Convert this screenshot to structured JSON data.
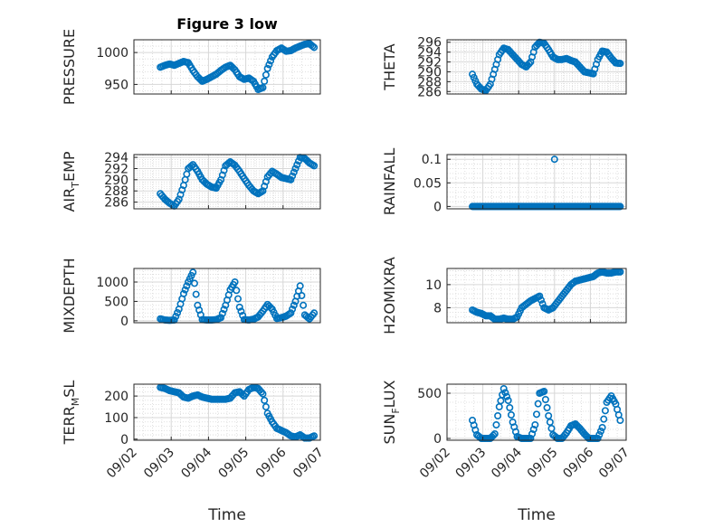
{
  "figure_title": "Figure 3 low",
  "colors": {
    "marker": "#0072bd",
    "axis": "#262626",
    "grid": "#d7d7d7",
    "frame": "#262626"
  },
  "x_ticks": [
    "09/02",
    "09/03",
    "09/04",
    "09/05",
    "09/06",
    "09/07"
  ],
  "x_label": "Time",
  "chart_data": [
    {
      "type": "scatter",
      "panel": "top-left",
      "title": "Figure 3 low",
      "ylabel": "PRESSURE",
      "ylim": [
        935,
        1020
      ],
      "yticks": [
        950,
        1000
      ],
      "grid": "on",
      "x": [
        "09/02 17:00",
        "09/02 20:00",
        "09/02 23:00",
        "09/03 02:00",
        "09/03 05:00",
        "09/03 08:00",
        "09/03 11:00",
        "09/03 14:00",
        "09/03 17:00",
        "09/03 20:00",
        "09/03 23:00",
        "09/04 02:00",
        "09/04 05:00",
        "09/04 08:00",
        "09/04 11:00",
        "09/04 14:00",
        "09/04 17:00",
        "09/04 20:00",
        "09/04 23:00",
        "09/05 02:00",
        "09/05 05:00",
        "09/05 08:00",
        "09/05 11:00",
        "09/05 14:00",
        "09/05 17:00",
        "09/05 20:00",
        "09/05 23:00",
        "09/06 02:00",
        "09/06 05:00",
        "09/06 08:00",
        "09/06 11:00",
        "09/06 14:00",
        "09/06 17:00",
        "09/06 20:00"
      ],
      "y": [
        977,
        980,
        982,
        980,
        983,
        986,
        984,
        972,
        962,
        955,
        958,
        962,
        966,
        972,
        977,
        980,
        973,
        962,
        958,
        960,
        955,
        942,
        945,
        975,
        993,
        1003,
        1007,
        1002,
        1003,
        1007,
        1010,
        1013,
        1014,
        1008
      ]
    },
    {
      "type": "scatter",
      "panel": "top-right",
      "ylabel": "THETA",
      "ylim": [
        285.5,
        296.5
      ],
      "yticks": [
        286,
        288,
        290,
        292,
        294,
        296
      ],
      "grid": "on",
      "x": [
        "09/02 17:00",
        "09/02 20:00",
        "09/02 23:00",
        "09/03 02:00",
        "09/03 05:00",
        "09/03 08:00",
        "09/03 11:00",
        "09/03 14:00",
        "09/03 17:00",
        "09/03 20:00",
        "09/03 23:00",
        "09/04 02:00",
        "09/04 05:00",
        "09/04 08:00",
        "09/04 11:00",
        "09/04 14:00",
        "09/04 17:00",
        "09/04 20:00",
        "09/04 23:00",
        "09/05 02:00",
        "09/05 05:00",
        "09/05 08:00",
        "09/05 11:00",
        "09/05 14:00",
        "09/05 17:00",
        "09/05 20:00",
        "09/05 23:00",
        "09/06 02:00",
        "09/06 05:00",
        "09/06 08:00",
        "09/06 11:00",
        "09/06 14:00",
        "09/06 17:00",
        "09/06 20:00"
      ],
      "y": [
        289.5,
        287.5,
        286.5,
        286.2,
        287.5,
        290.5,
        293.5,
        294.8,
        294.5,
        293.5,
        292.5,
        291.5,
        291,
        292,
        295,
        296,
        295.8,
        294.5,
        293,
        292.5,
        292.5,
        292.7,
        292.3,
        292,
        291,
        290,
        289.8,
        289.6,
        292.5,
        294.2,
        294,
        292.8,
        291.8,
        291.7
      ]
    },
    {
      "type": "scatter",
      "panel": "row2-left",
      "ylabel": "AIR_TEMP",
      "ylabel_sub": "T",
      "ylim": [
        284.8,
        294.5
      ],
      "yticks": [
        286,
        288,
        290,
        292,
        294
      ],
      "grid": "on",
      "x": [
        "09/02 17:00",
        "09/02 20:00",
        "09/02 23:00",
        "09/03 02:00",
        "09/03 05:00",
        "09/03 08:00",
        "09/03 11:00",
        "09/03 14:00",
        "09/03 17:00",
        "09/03 20:00",
        "09/03 23:00",
        "09/04 02:00",
        "09/04 05:00",
        "09/04 08:00",
        "09/04 11:00",
        "09/04 14:00",
        "09/04 17:00",
        "09/04 20:00",
        "09/04 23:00",
        "09/05 02:00",
        "09/05 05:00",
        "09/05 08:00",
        "09/05 11:00",
        "09/05 14:00",
        "09/05 17:00",
        "09/05 20:00",
        "09/05 23:00",
        "09/06 02:00",
        "09/06 05:00",
        "09/06 08:00",
        "09/06 11:00",
        "09/06 14:00",
        "09/06 17:00",
        "09/06 20:00"
      ],
      "y": [
        287.5,
        286.5,
        285.8,
        285.3,
        286.5,
        289,
        292,
        292.7,
        291.5,
        290,
        289.2,
        288.7,
        288.5,
        290,
        292.5,
        293.2,
        292.6,
        291.5,
        290.2,
        289,
        288,
        287.5,
        288,
        290.5,
        291.5,
        291,
        290.4,
        290.2,
        290,
        292,
        294,
        293.8,
        293,
        292.5
      ]
    },
    {
      "type": "scatter",
      "panel": "row2-right",
      "ylabel": "RAINFALL",
      "ylim": [
        -0.005,
        0.11
      ],
      "yticks": [
        0,
        0.05,
        0.1
      ],
      "yticklabels": [
        "0",
        "0.05",
        "0.1"
      ],
      "grid": "on",
      "x_range": [
        "09/02 17:00",
        "09/06 20:00"
      ],
      "baseline": 0,
      "x": [
        "09/05 00:00"
      ],
      "y": [
        0.1
      ]
    },
    {
      "type": "scatter",
      "panel": "row3-left",
      "ylabel": "MIXDEPTH",
      "ylim": [
        -50,
        1350
      ],
      "yticks": [
        0,
        500,
        1000
      ],
      "grid": "on",
      "x": [
        "09/02 17:00",
        "09/02 20:00",
        "09/02 23:00",
        "09/03 02:00",
        "09/03 05:00",
        "09/03 08:00",
        "09/03 11:00",
        "09/03 14:00",
        "09/03 17:00",
        "09/03 20:00",
        "09/03 23:00",
        "09/04 02:00",
        "09/04 05:00",
        "09/04 08:00",
        "09/04 11:00",
        "09/04 14:00",
        "09/04 17:00",
        "09/04 20:00",
        "09/04 23:00",
        "09/05 02:00",
        "09/05 05:00",
        "09/05 08:00",
        "09/05 11:00",
        "09/05 14:00",
        "09/05 17:00",
        "09/05 20:00",
        "09/05 23:00",
        "09/06 02:00",
        "09/06 05:00",
        "09/06 08:00",
        "09/06 11:00",
        "09/06 14:00",
        "09/06 17:00",
        "09/06 20:00"
      ],
      "y": [
        50,
        20,
        10,
        20,
        300,
        700,
        1000,
        1250,
        400,
        30,
        20,
        20,
        30,
        80,
        400,
        800,
        1000,
        350,
        30,
        20,
        40,
        100,
        250,
        420,
        300,
        60,
        80,
        120,
        200,
        500,
        900,
        150,
        50,
        200
      ]
    },
    {
      "type": "scatter",
      "panel": "row3-right",
      "ylabel": "H2OMIXRA",
      "ylim": [
        6.7,
        11.4
      ],
      "yticks": [
        8,
        10
      ],
      "grid": "on",
      "x": [
        "09/02 17:00",
        "09/02 20:00",
        "09/02 23:00",
        "09/03 02:00",
        "09/03 05:00",
        "09/03 08:00",
        "09/03 11:00",
        "09/03 14:00",
        "09/03 17:00",
        "09/03 20:00",
        "09/03 23:00",
        "09/04 02:00",
        "09/04 05:00",
        "09/04 08:00",
        "09/04 11:00",
        "09/04 14:00",
        "09/04 17:00",
        "09/04 20:00",
        "09/04 23:00",
        "09/05 02:00",
        "09/05 05:00",
        "09/05 08:00",
        "09/05 11:00",
        "09/05 14:00",
        "09/05 17:00",
        "09/05 20:00",
        "09/05 23:00",
        "09/06 02:00",
        "09/06 05:00",
        "09/06 08:00",
        "09/06 11:00",
        "09/06 14:00",
        "09/06 17:00",
        "09/06 20:00"
      ],
      "y": [
        7.8,
        7.6,
        7.5,
        7.3,
        7.3,
        7.0,
        7.0,
        7.1,
        7.0,
        7.0,
        7.2,
        8.0,
        8.3,
        8.6,
        8.8,
        9.0,
        8.0,
        7.8,
        8.0,
        8.5,
        9.0,
        9.5,
        10.0,
        10.3,
        10.4,
        10.5,
        10.6,
        10.7,
        11.0,
        11.1,
        11.0,
        11.0,
        11.1,
        11.1
      ]
    },
    {
      "type": "scatter",
      "panel": "bottom-left",
      "ylabel": "TERR_MSL",
      "ylabel_sub": "M",
      "ylim": [
        -5,
        255
      ],
      "yticks": [
        0,
        100,
        200
      ],
      "grid": "on",
      "x": [
        "09/02 17:00",
        "09/02 20:00",
        "09/02 23:00",
        "09/03 02:00",
        "09/03 05:00",
        "09/03 08:00",
        "09/03 11:00",
        "09/03 14:00",
        "09/03 17:00",
        "09/03 20:00",
        "09/03 23:00",
        "09/04 02:00",
        "09/04 05:00",
        "09/04 08:00",
        "09/04 11:00",
        "09/04 14:00",
        "09/04 17:00",
        "09/04 20:00",
        "09/04 23:00",
        "09/05 02:00",
        "09/05 05:00",
        "09/05 08:00",
        "09/05 11:00",
        "09/05 14:00",
        "09/05 17:00",
        "09/05 20:00",
        "09/05 23:00",
        "09/06 02:00",
        "09/06 05:00",
        "09/06 08:00",
        "09/06 11:00",
        "09/06 14:00",
        "09/06 17:00",
        "09/06 20:00"
      ],
      "y": [
        240,
        235,
        225,
        220,
        215,
        195,
        190,
        200,
        205,
        195,
        190,
        185,
        185,
        185,
        185,
        190,
        215,
        220,
        200,
        230,
        240,
        235,
        210,
        120,
        80,
        50,
        40,
        30,
        15,
        10,
        20,
        5,
        5,
        15
      ]
    },
    {
      "type": "scatter",
      "panel": "bottom-right",
      "ylabel": "SUN_FLUX",
      "ylabel_sub": "F",
      "ylim": [
        -20,
        600
      ],
      "yticks": [
        0,
        500
      ],
      "grid": "on",
      "x": [
        "09/02 17:00",
        "09/02 20:00",
        "09/02 23:00",
        "09/03 02:00",
        "09/03 05:00",
        "09/03 08:00",
        "09/03 11:00",
        "09/03 14:00",
        "09/03 17:00",
        "09/03 20:00",
        "09/03 23:00",
        "09/04 02:00",
        "09/04 05:00",
        "09/04 08:00",
        "09/04 11:00",
        "09/04 14:00",
        "09/04 17:00",
        "09/04 20:00",
        "09/04 23:00",
        "09/05 02:00",
        "09/05 05:00",
        "09/05 08:00",
        "09/05 11:00",
        "09/05 14:00",
        "09/05 17:00",
        "09/05 20:00",
        "09/05 23:00",
        "09/06 02:00",
        "09/06 05:00",
        "09/06 08:00",
        "09/06 11:00",
        "09/06 14:00",
        "09/06 17:00",
        "09/06 20:00"
      ],
      "y": [
        200,
        40,
        0,
        0,
        0,
        50,
        350,
        550,
        420,
        180,
        20,
        0,
        0,
        0,
        150,
        500,
        520,
        250,
        40,
        0,
        0,
        60,
        140,
        160,
        110,
        50,
        0,
        0,
        0,
        120,
        400,
        470,
        380,
        200
      ]
    }
  ]
}
